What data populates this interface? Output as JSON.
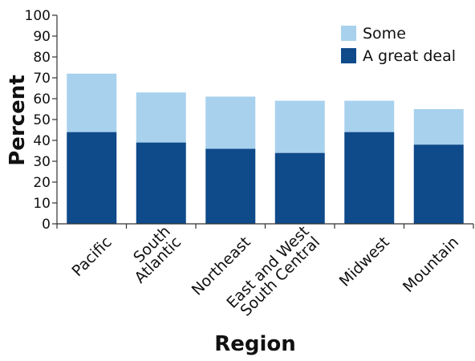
{
  "chart_data": {
    "type": "bar",
    "stacked": true,
    "categories": [
      "Pacific",
      "South\nAtlantic",
      "Northeast",
      "East and West\nSouth Central",
      "Midwest",
      "Mountain"
    ],
    "series": [
      {
        "name": "A great deal",
        "values": [
          44,
          39,
          36,
          34,
          44,
          38
        ],
        "color": "#0f4a8a"
      },
      {
        "name": "Some",
        "values": [
          28,
          24,
          25,
          25,
          15,
          17
        ],
        "color": "#a8d1ee"
      }
    ],
    "xlabel": "Region",
    "ylabel": "Percent",
    "ylim": [
      0,
      100
    ],
    "yticks": [
      0,
      10,
      20,
      30,
      40,
      50,
      60,
      70,
      80,
      90,
      100
    ],
    "legend": {
      "placement": "top-right",
      "order": [
        "Some",
        "A great deal"
      ]
    },
    "grid": false
  }
}
